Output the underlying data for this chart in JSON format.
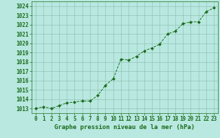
{
  "x": [
    0,
    1,
    2,
    3,
    4,
    5,
    6,
    7,
    8,
    9,
    10,
    11,
    12,
    13,
    14,
    15,
    16,
    17,
    18,
    19,
    20,
    21,
    22,
    23
  ],
  "y": [
    1013.0,
    1013.2,
    1013.0,
    1013.3,
    1013.6,
    1013.7,
    1013.8,
    1013.8,
    1014.4,
    1015.5,
    1016.2,
    1018.3,
    1018.2,
    1018.6,
    1019.2,
    1019.5,
    1019.9,
    1021.0,
    1021.3,
    1022.1,
    1022.3,
    1022.3,
    1023.4,
    1023.8
  ],
  "line_color": "#1a6b1a",
  "marker": "D",
  "marker_size": 2.2,
  "bg_color": "#b8e8e0",
  "grid_color": "#88bbaa",
  "xlabel": "Graphe pression niveau de la mer (hPa)",
  "xlabel_fontsize": 6.5,
  "tick_fontsize": 5.5,
  "ylim": [
    1012.5,
    1024.5
  ],
  "xlim": [
    -0.5,
    23.5
  ],
  "yticks": [
    1013,
    1014,
    1015,
    1016,
    1017,
    1018,
    1019,
    1020,
    1021,
    1022,
    1023,
    1024
  ],
  "xticks": [
    0,
    1,
    2,
    3,
    4,
    5,
    6,
    7,
    8,
    9,
    10,
    11,
    12,
    13,
    14,
    15,
    16,
    17,
    18,
    19,
    20,
    21,
    22,
    23
  ]
}
